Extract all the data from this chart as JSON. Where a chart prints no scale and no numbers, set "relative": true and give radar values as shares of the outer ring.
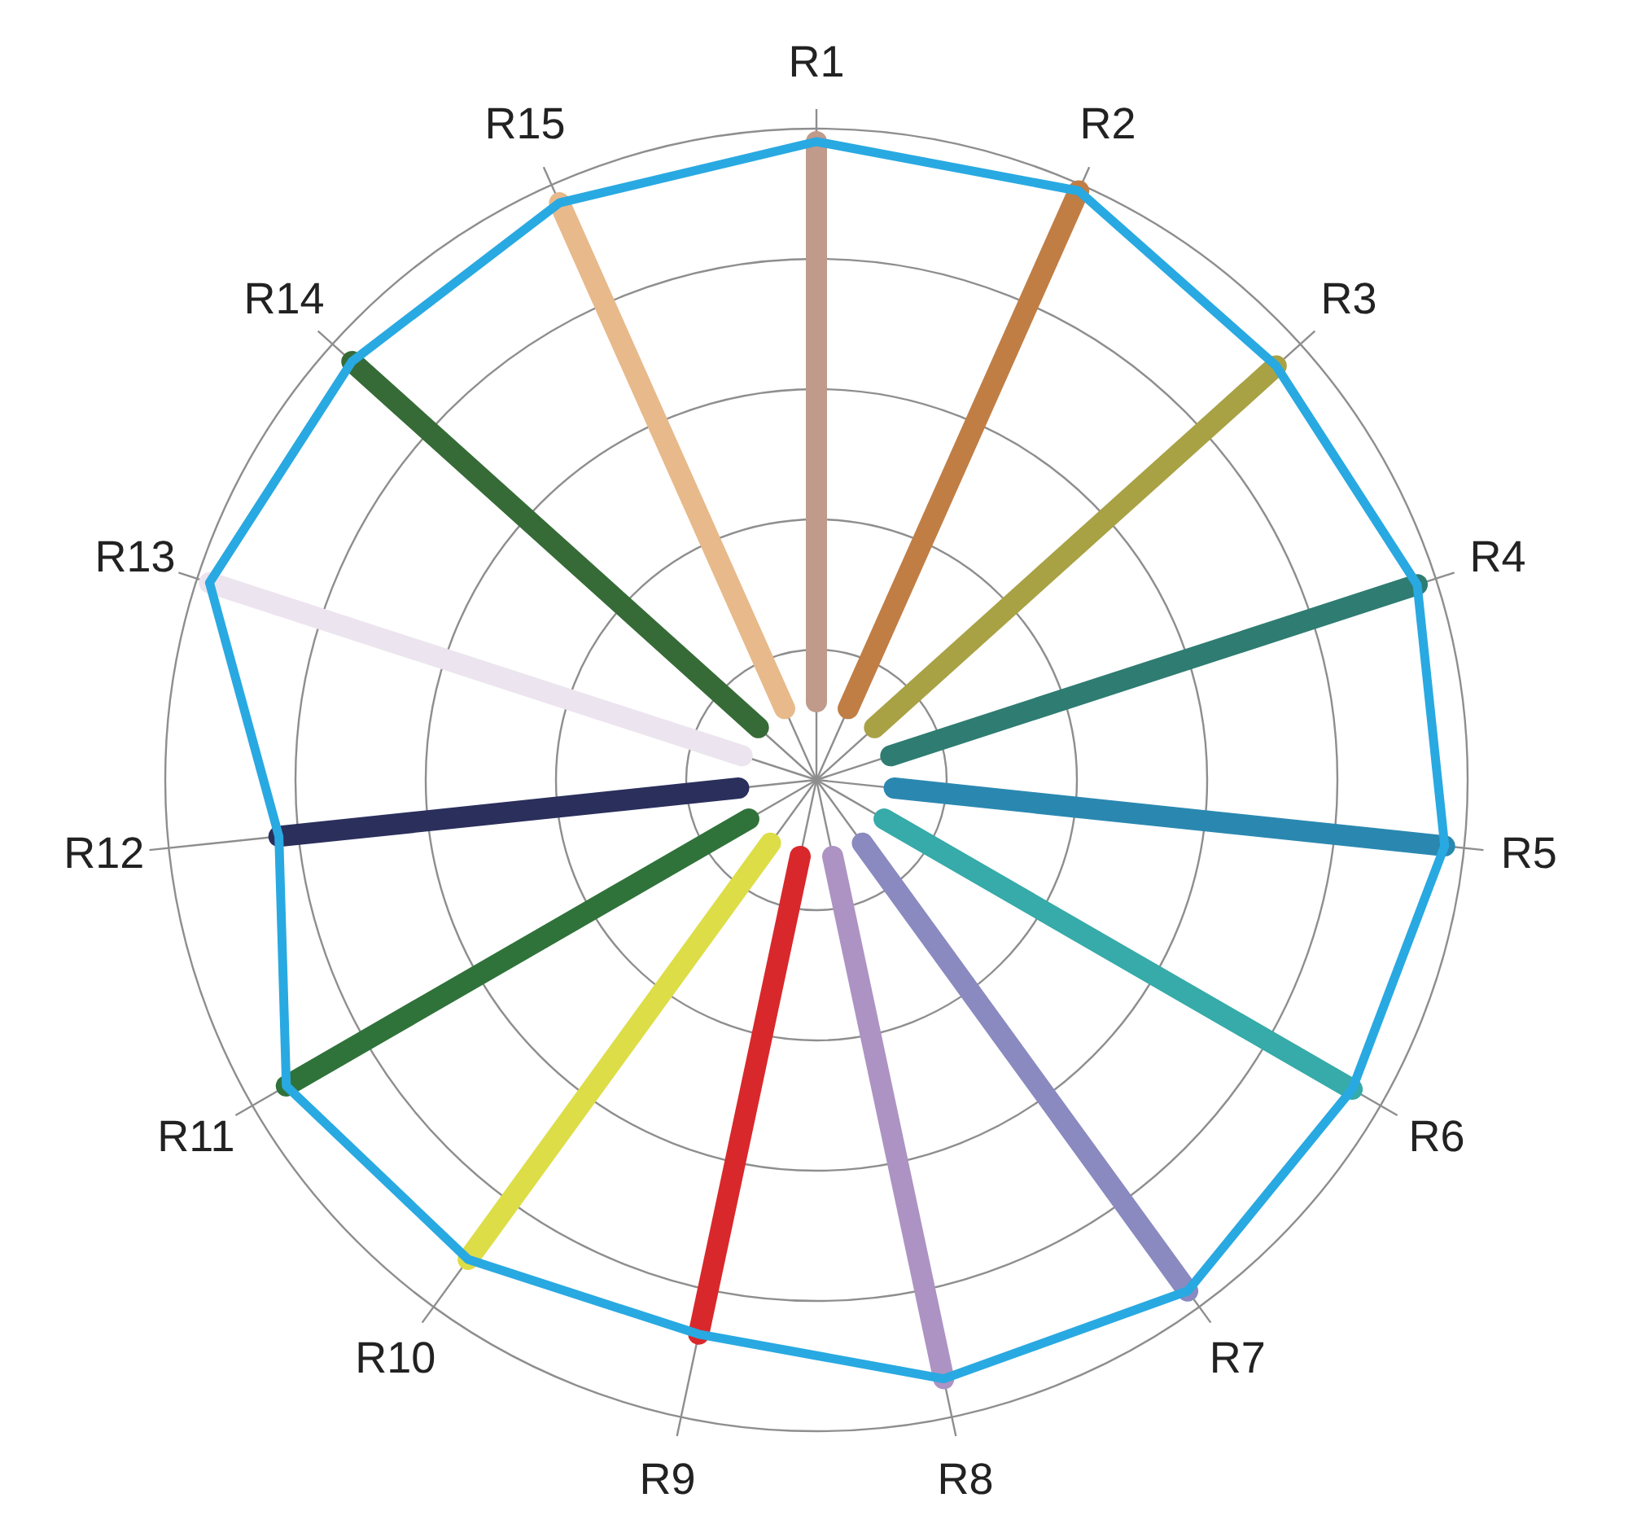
{
  "chart_data": {
    "type": "radar",
    "relative": true,
    "grid": true,
    "categories": [
      "R1",
      "R2",
      "R3",
      "R4",
      "R5",
      "R6",
      "R7",
      "R8",
      "R9",
      "R10",
      "R11",
      "R12",
      "R13",
      "R14",
      "R15"
    ],
    "series": [
      {
        "color": "#29a9e1",
        "values": [
          0.98,
          0.99,
          0.95,
          0.97,
          0.97,
          0.95,
          0.97,
          0.94,
          0.87,
          0.91,
          0.94,
          0.83,
          0.98,
          0.96,
          0.97
        ],
        "colors": [
          "#c09a8b",
          "#c07e45",
          "#a8a245",
          "#2e7c72",
          "#2a88b0",
          "#36aba9",
          "#8a8ac0",
          "#ad93c3",
          "#d9282b",
          "#dddd48",
          "#2f733a",
          "#2a2f5c",
          "#ece4ee",
          "#366b37",
          "#e8b98a"
        ]
      }
    ]
  }
}
